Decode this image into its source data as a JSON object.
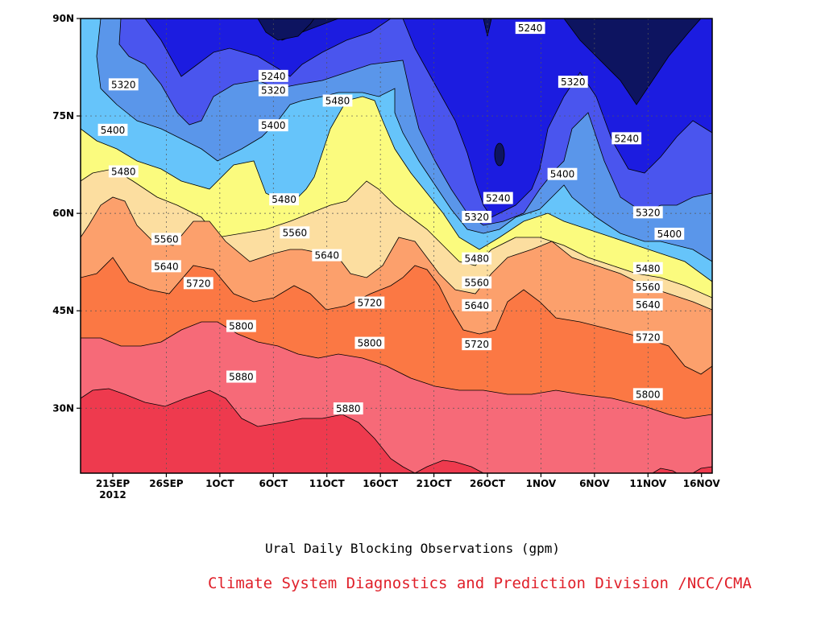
{
  "chart_data": {
    "type": "heatmap",
    "subtype": "filled-contour",
    "title": "",
    "xlabel": "",
    "ylabel": "",
    "x_ticks": [
      "21SEP",
      "26SEP",
      "1OCT",
      "6OCT",
      "11OCT",
      "16OCT",
      "21OCT",
      "26OCT",
      "1NOV",
      "6NOV",
      "11NOV",
      "16NOV"
    ],
    "x_year_label": "2012",
    "y_ticks": [
      "90N",
      "75N",
      "60N",
      "45N",
      "30N"
    ],
    "ylim_deg": [
      20,
      90
    ],
    "contour_levels": [
      5240,
      5320,
      5400,
      5480,
      5560,
      5640,
      5720,
      5800,
      5880
    ],
    "fill_colors": [
      "#0d1460",
      "#1c1ce0",
      "#4a55ee",
      "#5a96ea",
      "#66c4fa",
      "#fbfb7e",
      "#fcdea0",
      "#fca06c",
      "#fb7844",
      "#f66a78",
      "#ee3a4e"
    ],
    "contour_line_labels": [
      {
        "v": "5320",
        "date": "2012-09-22",
        "lat": 79.8
      },
      {
        "v": "5240",
        "date": "2012-10-06",
        "lat": 81.1
      },
      {
        "v": "5320",
        "date": "2012-10-06",
        "lat": 78.9
      },
      {
        "v": "5240",
        "date": "2012-10-30",
        "lat": 88.5
      },
      {
        "v": "5320",
        "date": "2012-11-03",
        "lat": 80.2
      },
      {
        "v": "5400",
        "date": "2012-09-21",
        "lat": 72.8
      },
      {
        "v": "5400",
        "date": "2012-10-06",
        "lat": 73.5
      },
      {
        "v": "5480",
        "date": "2012-10-12",
        "lat": 77.3
      },
      {
        "v": "5240",
        "date": "2012-11-08",
        "lat": 71.5
      },
      {
        "v": "5480",
        "date": "2012-09-22",
        "lat": 66.4
      },
      {
        "v": "5400",
        "date": "2012-11-02",
        "lat": 66.0
      },
      {
        "v": "5480",
        "date": "2012-10-07",
        "lat": 62.1
      },
      {
        "v": "5240",
        "date": "2012-10-27",
        "lat": 62.3
      },
      {
        "v": "5320",
        "date": "2012-10-25",
        "lat": 59.4
      },
      {
        "v": "5320",
        "date": "2012-11-10",
        "lat": 60.1
      },
      {
        "v": "5560",
        "date": "2012-09-26",
        "lat": 56.0
      },
      {
        "v": "5560",
        "date": "2012-10-08",
        "lat": 57.0
      },
      {
        "v": "5400",
        "date": "2012-11-12",
        "lat": 56.8
      },
      {
        "v": "5640",
        "date": "2012-10-11",
        "lat": 53.5
      },
      {
        "v": "5480",
        "date": "2012-10-25",
        "lat": 53.0
      },
      {
        "v": "5480",
        "date": "2012-11-10",
        "lat": 51.5
      },
      {
        "v": "5640",
        "date": "2012-09-26",
        "lat": 51.8
      },
      {
        "v": "5720",
        "date": "2012-09-29",
        "lat": 49.2
      },
      {
        "v": "5560",
        "date": "2012-10-25",
        "lat": 49.3
      },
      {
        "v": "5560",
        "date": "2012-11-10",
        "lat": 48.6
      },
      {
        "v": "5720",
        "date": "2012-10-15",
        "lat": 46.2
      },
      {
        "v": "5640",
        "date": "2012-10-25",
        "lat": 45.8
      },
      {
        "v": "5640",
        "date": "2012-11-10",
        "lat": 45.9
      },
      {
        "v": "5800",
        "date": "2012-10-03",
        "lat": 42.6
      },
      {
        "v": "5800",
        "date": "2012-10-15",
        "lat": 40.0
      },
      {
        "v": "5720",
        "date": "2012-11-10",
        "lat": 40.9
      },
      {
        "v": "5720",
        "date": "2012-10-25",
        "lat": 39.8
      },
      {
        "v": "5880",
        "date": "2012-10-03",
        "lat": 34.8
      },
      {
        "v": "5800",
        "date": "2012-11-10",
        "lat": 32.1
      },
      {
        "v": "5880",
        "date": "2012-10-13",
        "lat": 29.9
      }
    ]
  },
  "captions": {
    "line1": "Ural Daily Blocking Observations (gpm)",
    "line2": "Climate System Diagnostics and Prediction Division /NCC/CMA"
  }
}
